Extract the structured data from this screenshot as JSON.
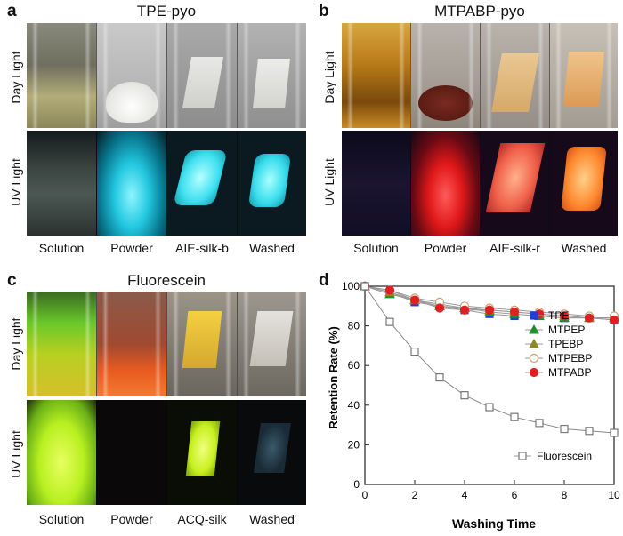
{
  "panels": {
    "a": {
      "letter": "a",
      "title": "TPE-pyo",
      "rows": [
        "Day Light",
        "UV Light"
      ],
      "columns": [
        "Solution",
        "Powder",
        "AIE-silk-b",
        "Washed"
      ]
    },
    "b": {
      "letter": "b",
      "title": "MTPABP-pyo",
      "rows": [
        "Day Light",
        "UV Light"
      ],
      "columns": [
        "Solution",
        "Powder",
        "AIE-silk-r",
        "Washed"
      ]
    },
    "c": {
      "letter": "c",
      "title": "Fluorescein",
      "rows": [
        "Day Light",
        "UV Light"
      ],
      "columns": [
        "Solution",
        "Powder",
        "ACQ-silk",
        "Washed"
      ]
    },
    "d": {
      "letter": "d"
    }
  },
  "chart_data": {
    "type": "line",
    "xlabel": "Washing Time",
    "ylabel": "Retention Rate (%)",
    "xlim": [
      0,
      10
    ],
    "ylim": [
      0,
      100
    ],
    "xticks": [
      0,
      2,
      4,
      6,
      8,
      10
    ],
    "yticks": [
      0,
      20,
      40,
      60,
      80,
      100
    ],
    "legend_position": "right",
    "series": [
      {
        "name": "TPE",
        "marker": "square",
        "color": "#1f3fd6",
        "x": [
          0,
          1,
          2,
          3,
          4,
          5,
          6,
          7,
          8,
          9,
          10
        ],
        "y": [
          100,
          97,
          92,
          90,
          88,
          86,
          85,
          85,
          84,
          84,
          83
        ]
      },
      {
        "name": "MTPEP",
        "marker": "triangle",
        "color": "#1a8f2a",
        "x": [
          0,
          1,
          2,
          3,
          4,
          5,
          6,
          7,
          8,
          9,
          10
        ],
        "y": [
          100,
          96,
          93,
          90,
          89,
          87,
          86,
          85,
          84,
          84,
          84
        ]
      },
      {
        "name": "TPEBP",
        "marker": "triangle",
        "color": "#8a8a22",
        "x": [
          0,
          1,
          2,
          3,
          4,
          5,
          6,
          7,
          8,
          9,
          10
        ],
        "y": [
          100,
          97,
          93,
          91,
          89,
          88,
          87,
          86,
          85,
          84,
          84
        ]
      },
      {
        "name": "MTPEBP",
        "marker": "circle-open",
        "color": "#c8a070",
        "x": [
          0,
          1,
          2,
          3,
          4,
          5,
          6,
          7,
          8,
          9,
          10
        ],
        "y": [
          100,
          98,
          94,
          92,
          90,
          89,
          88,
          87,
          86,
          85,
          85
        ]
      },
      {
        "name": "MTPABP",
        "marker": "circle",
        "color": "#e02020",
        "x": [
          0,
          1,
          2,
          3,
          4,
          5,
          6,
          7,
          8,
          9,
          10
        ],
        "y": [
          100,
          98,
          93,
          89,
          88,
          88,
          87,
          86,
          85,
          84,
          83
        ]
      },
      {
        "name": "Fluorescein",
        "marker": "square-open",
        "color": "#777777",
        "x": [
          0,
          1,
          2,
          3,
          4,
          5,
          6,
          7,
          8,
          9,
          10
        ],
        "y": [
          100,
          82,
          67,
          54,
          45,
          39,
          34,
          31,
          28,
          27,
          26
        ]
      }
    ]
  }
}
